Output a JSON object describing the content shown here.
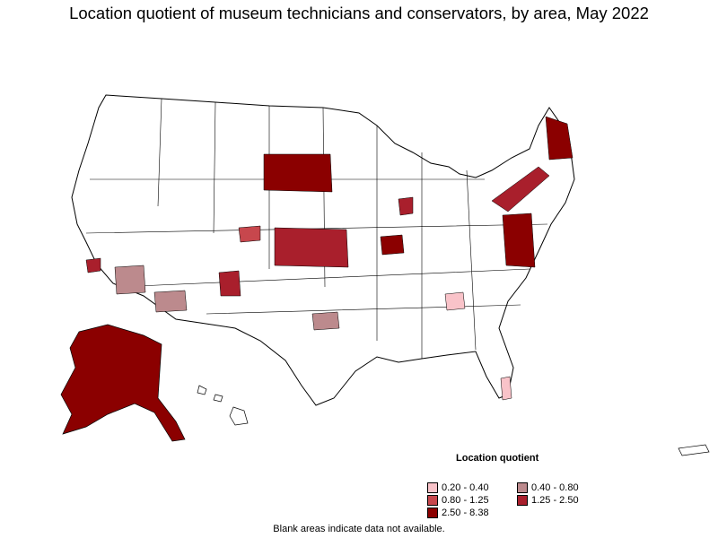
{
  "title": "Location quotient of museum technicians and conservators, by area, May 2022",
  "legend": {
    "title": "Location quotient",
    "items": [
      {
        "label": "0.20 - 0.40",
        "color": "#f9c3c9"
      },
      {
        "label": "0.40 - 0.80",
        "color": "#bc8a8d"
      },
      {
        "label": "0.80 - 1.25",
        "color": "#c7474d"
      },
      {
        "label": "1.25 - 2.50",
        "color": "#a91f2c"
      },
      {
        "label": "2.50 - 8.38",
        "color": "#8b0000"
      }
    ]
  },
  "footnote": "Blank areas indicate data not available."
}
